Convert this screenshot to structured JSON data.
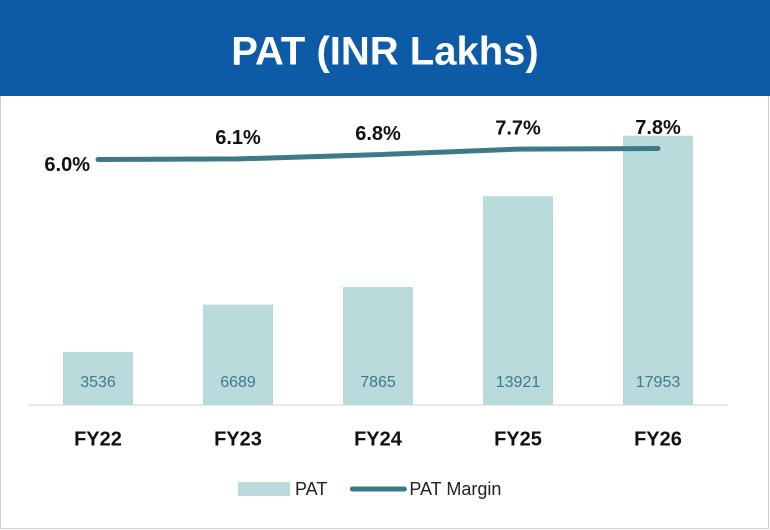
{
  "chart_data": {
    "type": "bar",
    "title": "PAT (INR Lakhs)",
    "categories": [
      "FY22",
      "FY23",
      "FY24",
      "FY25",
      "FY26"
    ],
    "series": [
      {
        "name": "PAT",
        "type": "bar",
        "color": "#b9dbdb",
        "values": [
          3536,
          6689,
          7865,
          13921,
          17953
        ]
      },
      {
        "name": "PAT Margin",
        "type": "line",
        "axis": "y2",
        "color": "#3d7a87",
        "values": [
          6.0,
          6.1,
          6.8,
          7.7,
          7.8
        ],
        "value_labels": [
          "6.0%",
          "6.1%",
          "6.8%",
          "7.7%",
          "7.8%"
        ]
      }
    ],
    "ylim": [
      0,
      18000
    ],
    "y2lim": [
      -34,
      10
    ],
    "legend": "bottom"
  }
}
